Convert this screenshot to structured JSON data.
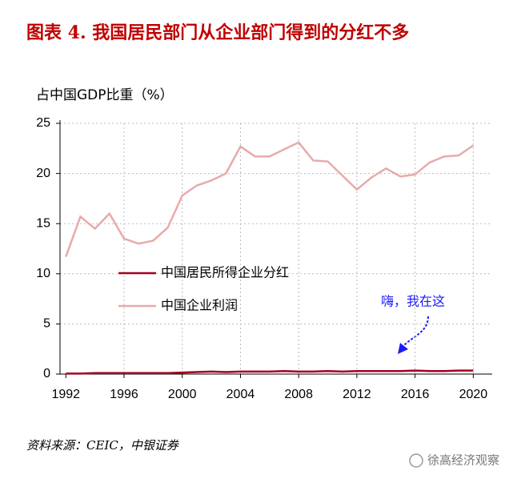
{
  "chart_data": {
    "type": "line",
    "title": "图表 4. 我国居民部门从企业部门得到的分红不多",
    "y_label": "占中国GDP比重（%）",
    "source": "资料来源：CEIC，中银证券",
    "annotation": "嗨，我在这",
    "watermark": "徐高经济观察",
    "x": [
      1992,
      1993,
      1994,
      1995,
      1996,
      1997,
      1998,
      1999,
      2000,
      2001,
      2002,
      2003,
      2004,
      2005,
      2006,
      2007,
      2008,
      2009,
      2010,
      2011,
      2012,
      2013,
      2014,
      2015,
      2016,
      2017,
      2018,
      2019,
      2020
    ],
    "series": [
      {
        "name": "中国居民所得企业分红",
        "color": "#a50021",
        "values": [
          0.05,
          0.05,
          0.1,
          0.1,
          0.1,
          0.1,
          0.1,
          0.1,
          0.15,
          0.2,
          0.25,
          0.2,
          0.25,
          0.25,
          0.25,
          0.3,
          0.25,
          0.25,
          0.3,
          0.25,
          0.3,
          0.3,
          0.3,
          0.3,
          0.35,
          0.3,
          0.3,
          0.35,
          0.35
        ]
      },
      {
        "name": "中国企业利润",
        "color": "#e8aaaa",
        "values": [
          11.7,
          15.7,
          14.5,
          16.0,
          13.5,
          13.0,
          13.3,
          14.6,
          17.8,
          18.8,
          19.3,
          20.0,
          22.7,
          21.7,
          21.7,
          22.4,
          23.1,
          21.3,
          21.2,
          19.8,
          18.4,
          19.6,
          20.5,
          19.7,
          19.9,
          21.1,
          21.7,
          21.8,
          22.8
        ]
      }
    ],
    "xlim": [
      1991.6,
      2021.3
    ],
    "xticks": [
      1992,
      1996,
      2000,
      2004,
      2008,
      2012,
      2016,
      2020
    ],
    "ylim": [
      0,
      25
    ],
    "yticks": [
      0,
      5,
      10,
      15,
      20,
      25
    ],
    "grid": true,
    "legend": "left"
  }
}
